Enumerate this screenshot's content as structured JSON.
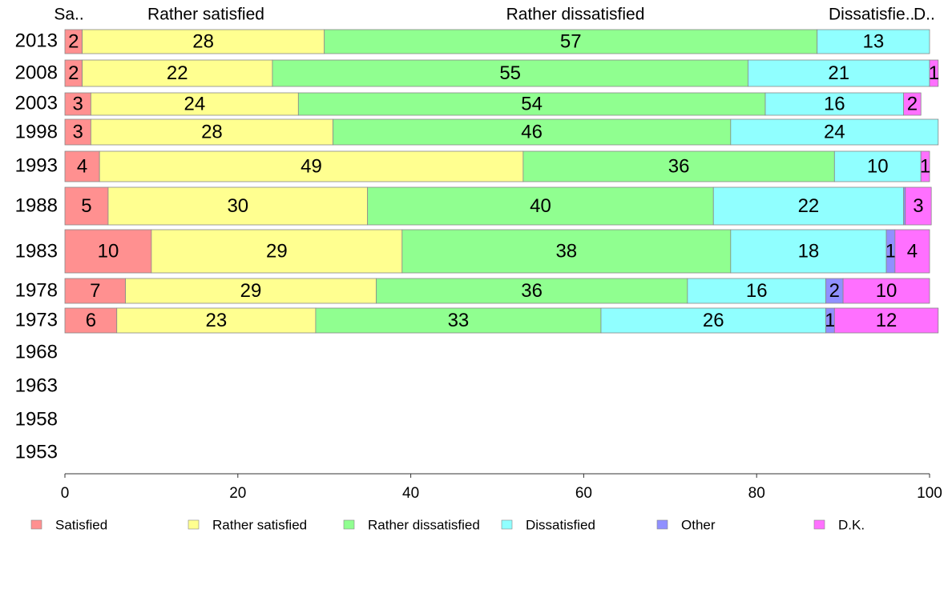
{
  "chart_data": {
    "type": "bar",
    "orientation": "horizontal",
    "stacked": true,
    "categories": [
      "2013",
      "2008",
      "2003",
      "1998",
      "1993",
      "1988",
      "1983",
      "1978",
      "1973",
      "1968",
      "1963",
      "1958",
      "1953"
    ],
    "series": [
      {
        "name": "Satisfied",
        "color": "#ff9090",
        "values": [
          2,
          2,
          3,
          3,
          4,
          5,
          10,
          7,
          6,
          null,
          null,
          null,
          null
        ]
      },
      {
        "name": "Rather satisfied",
        "color": "#ffff90",
        "values": [
          28,
          22,
          24,
          28,
          49,
          30,
          29,
          29,
          23,
          null,
          null,
          null,
          null
        ]
      },
      {
        "name": "Rather dissatisfied",
        "color": "#90ff90",
        "values": [
          57,
          55,
          54,
          46,
          36,
          40,
          38,
          36,
          33,
          null,
          null,
          null,
          null
        ]
      },
      {
        "name": "Dissatisfied",
        "color": "#90ffff",
        "values": [
          13,
          21,
          16,
          24,
          10,
          22,
          18,
          16,
          26,
          null,
          null,
          null,
          null
        ]
      },
      {
        "name": "Other",
        "color": "#9090ff",
        "values": [
          0,
          0,
          0,
          0,
          0,
          0.2,
          1,
          2,
          1,
          null,
          null,
          null,
          null
        ]
      },
      {
        "name": "D.K.",
        "color": "#ff70ff",
        "values": [
          0,
          1,
          2,
          0,
          1,
          3,
          4,
          10,
          12,
          null,
          null,
          null,
          null
        ]
      }
    ],
    "segment_labels": [
      [
        "2",
        "28",
        "57",
        "13",
        "",
        ""
      ],
      [
        "2",
        "22",
        "55",
        "21",
        "",
        "1"
      ],
      [
        "3",
        "24",
        "54",
        "16",
        "",
        "2"
      ],
      [
        "3",
        "28",
        "46",
        "24",
        "",
        ""
      ],
      [
        "4",
        "49",
        "36",
        "10",
        "",
        "1"
      ],
      [
        "5",
        "30",
        "40",
        "22",
        "",
        "3"
      ],
      [
        "10",
        "29",
        "38",
        "18",
        "1",
        "4"
      ],
      [
        "7",
        "29",
        "36",
        "16",
        "2",
        "10"
      ],
      [
        "6",
        "23",
        "33",
        "26",
        "1",
        "12"
      ],
      [
        "",
        "",
        "",
        "",
        "",
        ""
      ],
      [
        "",
        "",
        "",
        "",
        "",
        ""
      ],
      [
        "",
        "",
        "",
        "",
        "",
        ""
      ],
      [
        "",
        "",
        "",
        "",
        "",
        ""
      ]
    ],
    "top_labels": [
      "Sa..",
      "Rather satisfied",
      "Rather dissatisfied",
      "Dissatisfie..",
      "D..",
      ""
    ],
    "xlim": [
      0,
      100
    ],
    "xticks": [
      "0",
      "20",
      "40",
      "60",
      "80",
      "100"
    ],
    "legend": {
      "placement": "bottom",
      "entries": [
        "Satisfied",
        "Rather satisfied",
        "Rather dissatisfied",
        "Dissatisfied",
        "Other",
        "D.K."
      ]
    },
    "title": "",
    "xlabel": "",
    "ylabel": ""
  }
}
